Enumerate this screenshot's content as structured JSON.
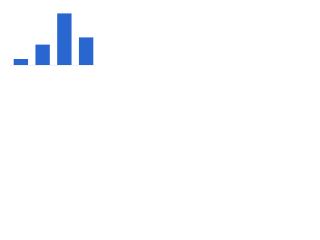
{
  "chart_data": {
    "type": "bar",
    "categories": [
      null,
      null,
      null,
      null
    ],
    "values": [
      5,
      17,
      43,
      23
    ],
    "color": "#2a66d0",
    "ylim": [
      0,
      50
    ]
  }
}
